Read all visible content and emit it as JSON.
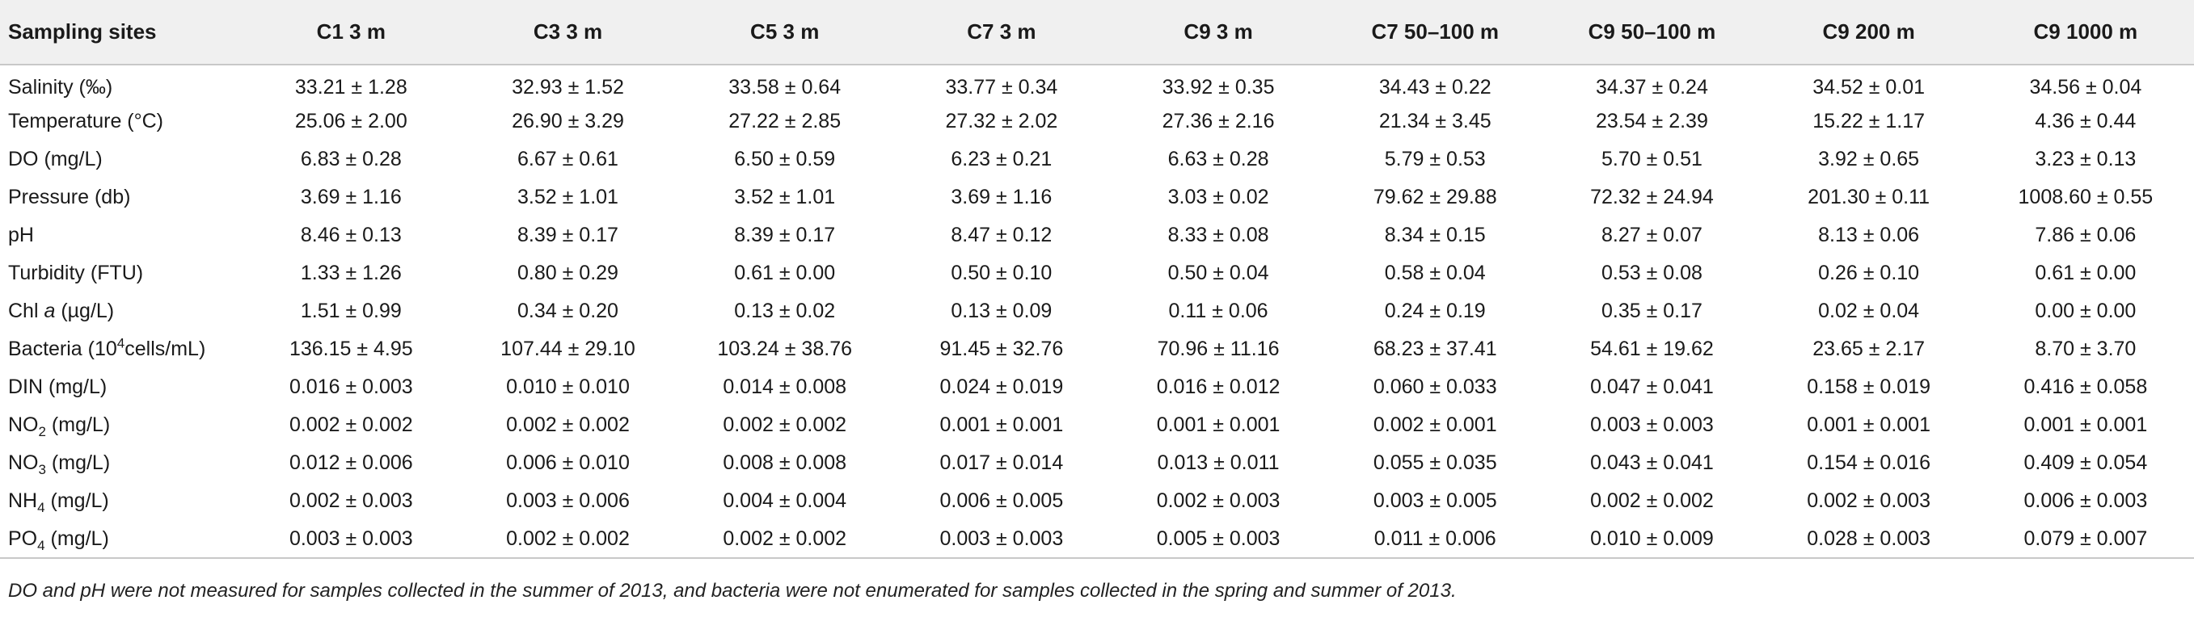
{
  "table": {
    "headers": [
      "Sampling sites",
      "C1 3 m",
      "C3 3 m",
      "C5 3 m",
      "C7 3 m",
      "C9 3 m",
      "C7 50–100 m",
      "C9 50–100 m",
      "C9 200 m",
      "C9 1000 m"
    ],
    "rows": [
      {
        "label_pre": "Salinity (‰)",
        "label_em": "",
        "label_sub": "",
        "label_sup": "",
        "label_post": "",
        "values": [
          "33.21 ± 1.28",
          "32.93 ± 1.52",
          "33.58 ± 0.64",
          "33.77 ± 0.34",
          "33.92 ± 0.35",
          "34.43 ± 0.22",
          "34.37 ± 0.24",
          "34.52 ± 0.01",
          "34.56 ± 0.04"
        ]
      },
      {
        "label_pre": "Temperature (°C)",
        "label_em": "",
        "label_sub": "",
        "label_sup": "",
        "label_post": "",
        "values": [
          "25.06 ± 2.00",
          "26.90 ± 3.29",
          "27.22 ± 2.85",
          "27.32 ± 2.02",
          "27.36 ± 2.16",
          "21.34 ± 3.45",
          "23.54 ± 2.39",
          "15.22 ± 1.17",
          "4.36 ± 0.44"
        ]
      },
      {
        "label_pre": "DO (mg/L)",
        "label_em": "",
        "label_sub": "",
        "label_sup": "",
        "label_post": "",
        "values": [
          "6.83 ± 0.28",
          "6.67 ± 0.61",
          "6.50 ± 0.59",
          "6.23 ± 0.21",
          "6.63 ± 0.28",
          "5.79 ± 0.53",
          "5.70 ± 0.51",
          "3.92 ± 0.65",
          "3.23 ± 0.13"
        ]
      },
      {
        "label_pre": "Pressure (db)",
        "label_em": "",
        "label_sub": "",
        "label_sup": "",
        "label_post": "",
        "values": [
          "3.69 ± 1.16",
          "3.52 ± 1.01",
          "3.52 ± 1.01",
          "3.69 ± 1.16",
          "3.03 ± 0.02",
          "79.62 ± 29.88",
          "72.32 ± 24.94",
          "201.30 ± 0.11",
          "1008.60 ± 0.55"
        ]
      },
      {
        "label_pre": "pH",
        "label_em": "",
        "label_sub": "",
        "label_sup": "",
        "label_post": "",
        "values": [
          "8.46 ± 0.13",
          "8.39 ± 0.17",
          "8.39 ± 0.17",
          "8.47 ± 0.12",
          "8.33 ± 0.08",
          "8.34 ± 0.15",
          "8.27 ± 0.07",
          "8.13 ± 0.06",
          "7.86 ± 0.06"
        ]
      },
      {
        "label_pre": "Turbidity (FTU)",
        "label_em": "",
        "label_sub": "",
        "label_sup": "",
        "label_post": "",
        "values": [
          "1.33 ± 1.26",
          "0.80 ± 0.29",
          "0.61 ± 0.00",
          "0.50 ± 0.10",
          "0.50 ± 0.04",
          "0.58 ± 0.04",
          "0.53 ± 0.08",
          "0.26 ± 0.10",
          "0.61 ± 0.00"
        ]
      },
      {
        "label_pre": "Chl ",
        "label_em": "a",
        "label_sub": "",
        "label_sup": "",
        "label_post": " (µg/L)",
        "values": [
          "1.51 ± 0.99",
          "0.34 ± 0.20",
          "0.13 ± 0.02",
          "0.13 ± 0.09",
          "0.11 ± 0.06",
          "0.24 ± 0.19",
          "0.35 ± 0.17",
          "0.02 ± 0.04",
          "0.00 ± 0.00"
        ]
      },
      {
        "label_pre": "Bacteria (10",
        "label_em": "",
        "label_sub": "",
        "label_sup": "4",
        "label_post": "cells/mL)",
        "values": [
          "136.15 ± 4.95",
          "107.44 ± 29.10",
          "103.24 ± 38.76",
          "91.45 ± 32.76",
          "70.96 ± 11.16",
          "68.23 ± 37.41",
          "54.61 ± 19.62",
          "23.65 ± 2.17",
          "8.70 ± 3.70"
        ]
      },
      {
        "label_pre": "DIN (mg/L)",
        "label_em": "",
        "label_sub": "",
        "label_sup": "",
        "label_post": "",
        "values": [
          "0.016 ± 0.003",
          "0.010 ± 0.010",
          "0.014 ± 0.008",
          "0.024 ± 0.019",
          "0.016 ± 0.012",
          "0.060 ± 0.033",
          "0.047 ± 0.041",
          "0.158 ± 0.019",
          "0.416 ± 0.058"
        ]
      },
      {
        "label_pre": "NO",
        "label_em": "",
        "label_sub": "2",
        "label_sup": "",
        "label_post": " (mg/L)",
        "values": [
          "0.002 ± 0.002",
          "0.002 ± 0.002",
          "0.002 ± 0.002",
          "0.001 ± 0.001",
          "0.001 ± 0.001",
          "0.002 ± 0.001",
          "0.003 ± 0.003",
          "0.001 ± 0.001",
          "0.001 ± 0.001"
        ]
      },
      {
        "label_pre": "NO",
        "label_em": "",
        "label_sub": "3",
        "label_sup": "",
        "label_post": " (mg/L)",
        "values": [
          "0.012 ± 0.006",
          "0.006 ± 0.010",
          "0.008 ± 0.008",
          "0.017 ± 0.014",
          "0.013 ± 0.011",
          "0.055 ± 0.035",
          "0.043 ± 0.041",
          "0.154 ± 0.016",
          "0.409 ± 0.054"
        ]
      },
      {
        "label_pre": "NH",
        "label_em": "",
        "label_sub": "4",
        "label_sup": "",
        "label_post": " (mg/L)",
        "values": [
          "0.002 ± 0.003",
          "0.003 ± 0.006",
          "0.004 ± 0.004",
          "0.006 ± 0.005",
          "0.002 ± 0.003",
          "0.003 ± 0.005",
          "0.002 ± 0.002",
          "0.002 ± 0.003",
          "0.006 ± 0.003"
        ]
      },
      {
        "label_pre": "PO",
        "label_em": "",
        "label_sub": "4",
        "label_sup": "",
        "label_post": " (mg/L)",
        "values": [
          "0.003 ± 0.003",
          "0.002 ± 0.002",
          "0.002 ± 0.002",
          "0.003 ± 0.003",
          "0.005 ± 0.003",
          "0.011 ± 0.006",
          "0.010 ± 0.009",
          "0.028 ± 0.003",
          "0.079 ± 0.007"
        ]
      }
    ]
  },
  "footnote": "DO and pH were not measured for samples collected in the summer of 2013, and bacteria were not enumerated for samples collected in the spring and summer of 2013."
}
